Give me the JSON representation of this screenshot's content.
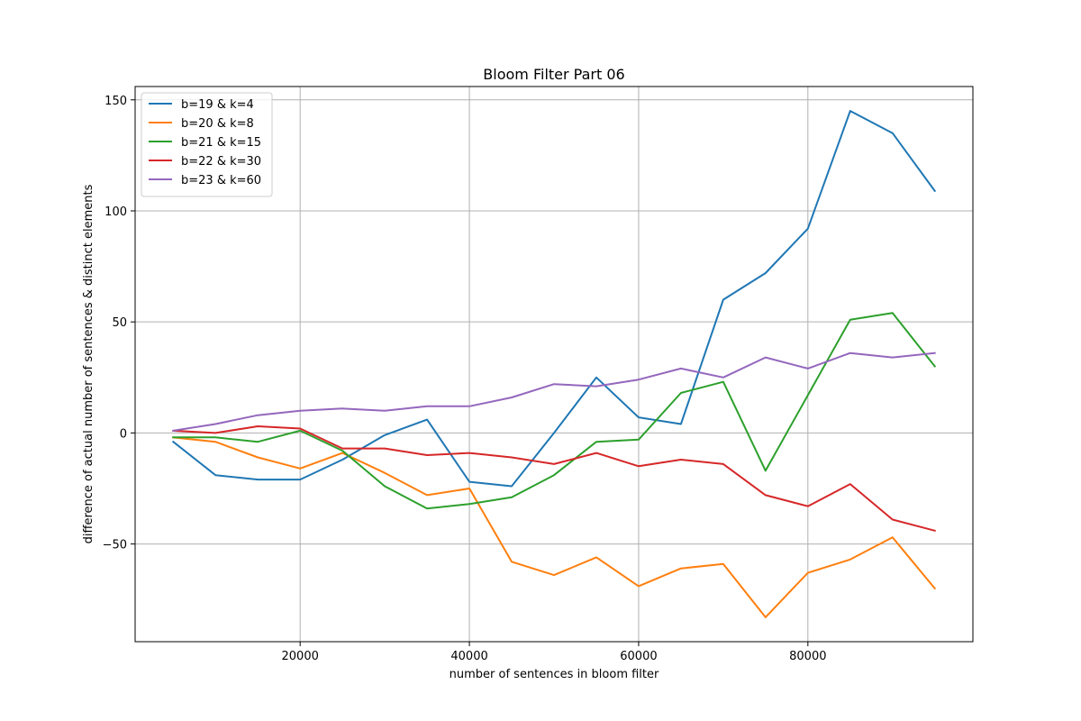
{
  "chart_data": {
    "type": "line",
    "title": "Bloom Filter Part 06",
    "xlabel": "number of sentences in bloom filter",
    "ylabel": "difference of actual number of sentences & distinct elements",
    "xlim": [
      500,
      99500
    ],
    "ylim": [
      -94,
      156
    ],
    "xticks": [
      20000,
      40000,
      60000,
      80000
    ],
    "xtick_labels": [
      "20000",
      "40000",
      "60000",
      "80000"
    ],
    "yticks": [
      -50,
      0,
      50,
      100,
      150
    ],
    "ytick_labels": [
      "−50",
      "0",
      "50",
      "100",
      "150"
    ],
    "grid": true,
    "legend_position": "upper-left",
    "x": [
      5000,
      10000,
      15000,
      20000,
      25000,
      30000,
      35000,
      40000,
      45000,
      50000,
      55000,
      60000,
      65000,
      70000,
      75000,
      80000,
      85000,
      90000,
      95000
    ],
    "series": [
      {
        "name": "b=19 & k=4",
        "color": "#1f77b4",
        "values": [
          -4,
          -19,
          -21,
          -21,
          -12,
          -1,
          6,
          -22,
          -24,
          0,
          25,
          7,
          4,
          60,
          72,
          92,
          145,
          135,
          109
        ]
      },
      {
        "name": "b=20 & k=8",
        "color": "#ff7f0e",
        "values": [
          -2,
          -4,
          -11,
          -16,
          -9,
          -18,
          -28,
          -25,
          -58,
          -64,
          -56,
          -69,
          -61,
          -59,
          -83,
          -63,
          -57,
          -47,
          -70
        ]
      },
      {
        "name": "b=21 & k=15",
        "color": "#2ca02c",
        "values": [
          -2,
          -2,
          -4,
          1,
          -8,
          -24,
          -34,
          -32,
          -29,
          -19,
          -4,
          -3,
          18,
          23,
          -17,
          17,
          51,
          54,
          30
        ]
      },
      {
        "name": "b=22 & k=30",
        "color": "#d62728",
        "values": [
          1,
          0,
          3,
          2,
          -7,
          -7,
          -10,
          -9,
          -11,
          -14,
          -9,
          -15,
          -12,
          -14,
          -28,
          -33,
          -23,
          -39,
          -44
        ]
      },
      {
        "name": "b=23 & k=60",
        "color": "#9467bd",
        "values": [
          1,
          4,
          8,
          10,
          11,
          10,
          12,
          12,
          16,
          22,
          21,
          24,
          29,
          25,
          34,
          29,
          36,
          34,
          36
        ]
      }
    ]
  }
}
